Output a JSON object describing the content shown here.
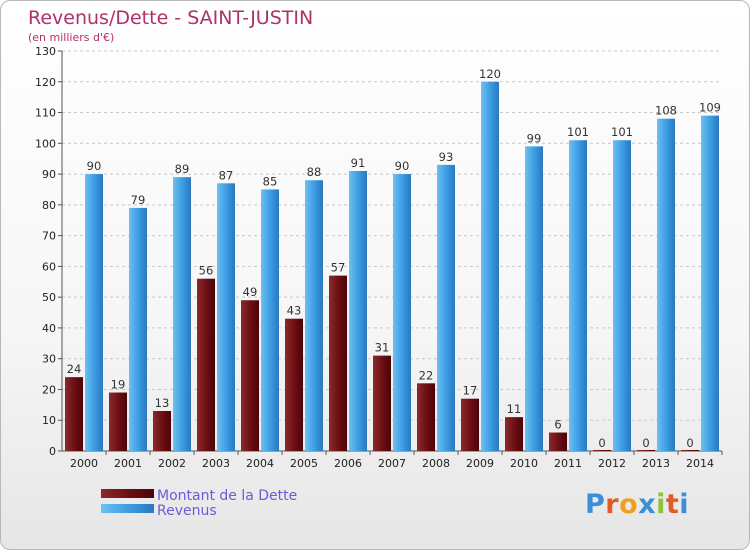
{
  "chart_data": {
    "type": "bar",
    "title": "Revenus/Dette - SAINT-JUSTIN",
    "subtitle": "(en milliers d'€)",
    "categories": [
      "2000",
      "2001",
      "2002",
      "2003",
      "2004",
      "2005",
      "2006",
      "2007",
      "2008",
      "2009",
      "2010",
      "2011",
      "2012",
      "2013",
      "2014"
    ],
    "series": [
      {
        "name": "Montant de la Dette",
        "color": "#7a1518",
        "values": [
          24,
          19,
          13,
          56,
          49,
          43,
          57,
          31,
          22,
          17,
          11,
          6,
          0,
          0,
          0
        ]
      },
      {
        "name": "Revenus",
        "color": "#3fa0e6",
        "values": [
          90,
          79,
          89,
          87,
          85,
          88,
          91,
          90,
          93,
          120,
          99,
          101,
          101,
          108,
          109
        ]
      }
    ],
    "ylim": [
      0,
      130
    ],
    "yticks": [
      0,
      10,
      20,
      30,
      40,
      50,
      60,
      70,
      80,
      90,
      100,
      110,
      120,
      130
    ],
    "grid": true,
    "legend_position": "bottom-left"
  },
  "brand": {
    "letters": [
      "P",
      "r",
      "o",
      "x",
      "i",
      "t",
      "i"
    ],
    "colors": [
      "#3a8fd8",
      "#e05a2a",
      "#f0a020",
      "#3a8fd8",
      "#8ac43a",
      "#e05a2a",
      "#3a8fd8"
    ]
  }
}
